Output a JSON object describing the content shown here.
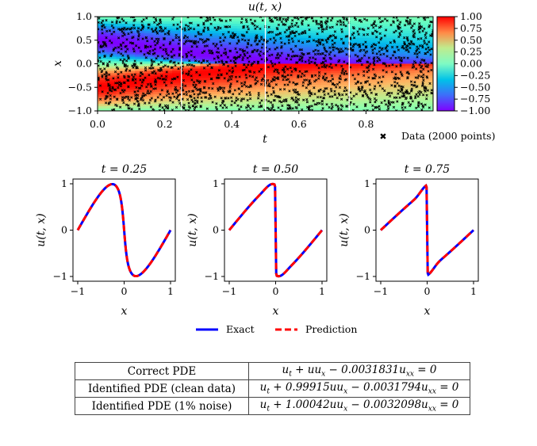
{
  "heatmap": {
    "title": "u(t, x)",
    "xlabel": "t",
    "ylabel": "x",
    "xticks": [
      "0.0",
      "0.2",
      "0.4",
      "0.6",
      "0.8"
    ],
    "yticks": [
      "1.0",
      "0.5",
      "0.0",
      "−0.5",
      "−1.0"
    ],
    "colorbar_ticks": [
      "1.00",
      "0.75",
      "0.50",
      "0.25",
      "0.00",
      "−0.25",
      "−0.50",
      "−0.75",
      "−1.00"
    ],
    "data_legend": "Data (2000 points)",
    "slice_times": [
      0.25,
      0.5,
      0.75
    ]
  },
  "slices": [
    {
      "title": "t = 0.25",
      "xlabel": "x",
      "ylabel": "u(t, x)"
    },
    {
      "title": "t = 0.50",
      "xlabel": "x",
      "ylabel": "u(t, x)"
    },
    {
      "title": "t = 0.75",
      "xlabel": "x",
      "ylabel": "u(t, x)"
    }
  ],
  "slice_xticks": [
    "−1",
    "0",
    "1"
  ],
  "slice_yticks": [
    "1",
    "0",
    "−1"
  ],
  "legend": {
    "exact": "Exact",
    "prediction": "Prediction"
  },
  "table": {
    "rows": [
      {
        "label": "Correct PDE",
        "equation": "u_t + uu_x − 0.0031831u_xx = 0"
      },
      {
        "label": "Identified PDE (clean data)",
        "equation": "u_t + 0.99915uu_x − 0.0031794u_xx = 0"
      },
      {
        "label": "Identified PDE (1% noise)",
        "equation": "u_t + 1.00042uu_x − 0.0032098u_xx = 0"
      }
    ]
  },
  "chart_data": [
    {
      "type": "heatmap",
      "title": "u(t, x)",
      "xlabel": "t",
      "ylabel": "x",
      "xlim": [
        0,
        1
      ],
      "ylim": [
        -1,
        1
      ],
      "zlim": [
        -1,
        1
      ],
      "colormap": "rainbow",
      "overlay": {
        "name": "Data (2000 points)",
        "count": 2000,
        "marker": "x"
      }
    },
    {
      "type": "line",
      "title": "t = 0.25",
      "xlim": [
        -1,
        1
      ],
      "ylim": [
        -1,
        1
      ],
      "series": [
        {
          "name": "Exact",
          "color": "#0000ff"
        },
        {
          "name": "Prediction",
          "color": "#ff0000",
          "dash": true
        }
      ]
    },
    {
      "type": "line",
      "title": "t = 0.50",
      "xlim": [
        -1,
        1
      ],
      "ylim": [
        -1,
        1
      ],
      "series": [
        {
          "name": "Exact",
          "color": "#0000ff"
        },
        {
          "name": "Prediction",
          "color": "#ff0000",
          "dash": true
        }
      ]
    },
    {
      "type": "line",
      "title": "t = 0.75",
      "xlim": [
        -1,
        1
      ],
      "ylim": [
        -1,
        1
      ],
      "series": [
        {
          "name": "Exact",
          "color": "#0000ff"
        },
        {
          "name": "Prediction",
          "color": "#ff0000",
          "dash": true
        }
      ]
    }
  ]
}
